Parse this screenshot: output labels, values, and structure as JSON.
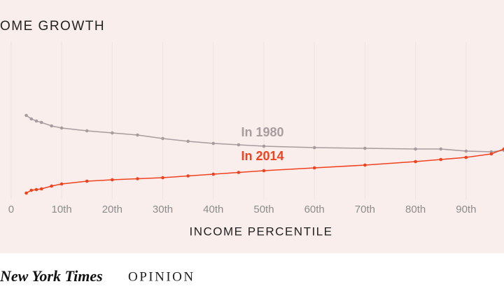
{
  "chart_data": {
    "type": "line",
    "title": "OME GROWTH",
    "x_label": "INCOME PERCENTILE",
    "x": [
      3,
      4,
      5,
      6,
      8,
      10,
      15,
      20,
      25,
      30,
      35,
      40,
      45,
      50,
      60,
      70,
      80,
      85,
      90,
      95,
      97.5
    ],
    "series": [
      {
        "name": "In 1980",
        "color": "#a89ca0",
        "values": [
          4.6,
          4.4,
          4.28,
          4.2,
          4.0,
          3.88,
          3.72,
          3.6,
          3.48,
          3.28,
          3.12,
          3.0,
          2.92,
          2.84,
          2.76,
          2.72,
          2.68,
          2.68,
          2.56,
          2.52,
          2.6
        ]
      },
      {
        "name": "In 2014",
        "color": "#f0421f",
        "values": [
          0.16,
          0.32,
          0.36,
          0.4,
          0.56,
          0.68,
          0.84,
          0.92,
          0.98,
          1.04,
          1.14,
          1.24,
          1.34,
          1.44,
          1.6,
          1.76,
          1.96,
          2.08,
          2.2,
          2.4,
          2.68
        ]
      }
    ],
    "xlim": [
      -2.2,
      97.5
    ],
    "ylim": [
      0,
      8
    ],
    "xticks": [
      {
        "value": 0,
        "label": "0"
      },
      {
        "value": 10,
        "label": "10th"
      },
      {
        "value": 20,
        "label": "20th"
      },
      {
        "value": 30,
        "label": "30th"
      },
      {
        "value": 40,
        "label": "40th"
      },
      {
        "value": 50,
        "label": "50th"
      },
      {
        "value": 60,
        "label": "60th"
      },
      {
        "value": 70,
        "label": "70th"
      },
      {
        "value": 80,
        "label": "80th"
      },
      {
        "value": 90,
        "label": "90th"
      }
    ],
    "source": "New York Times",
    "section": "OPINION"
  }
}
